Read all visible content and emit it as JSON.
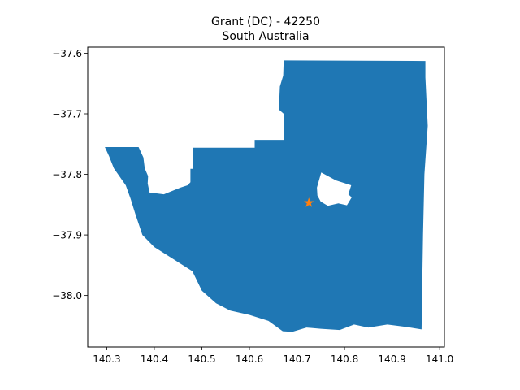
{
  "chart_data": {
    "type": "map",
    "title": "Grant (DC) - 42250",
    "subtitle": "South Australia",
    "xlim": [
      140.26,
      141.01
    ],
    "ylim": [
      -38.085,
      -37.59
    ],
    "xticks": [
      140.3,
      140.4,
      140.5,
      140.6,
      140.7,
      140.8,
      140.9,
      141.0
    ],
    "yticks": [
      -37.6,
      -37.7,
      -37.8,
      -37.9,
      -38.0
    ],
    "xtick_labels": [
      "140.3",
      "140.4",
      "140.5",
      "140.6",
      "140.7",
      "140.8",
      "140.9",
      "141.0"
    ],
    "ytick_labels": [
      "−37.6",
      "−37.7",
      "−37.8",
      "−37.9",
      "−38.0"
    ],
    "region_color": "#1f77b4",
    "marker": {
      "lon": 140.725,
      "lat": -37.847,
      "symbol": "star",
      "color": "#ff7f0e"
    },
    "region_outline": [
      [
        140.296,
        -37.755
      ],
      [
        140.367,
        -37.755
      ],
      [
        140.377,
        -37.772
      ],
      [
        140.38,
        -37.79
      ],
      [
        140.387,
        -37.803
      ],
      [
        140.386,
        -37.815
      ],
      [
        140.39,
        -37.83
      ],
      [
        140.42,
        -37.833
      ],
      [
        140.455,
        -37.822
      ],
      [
        140.47,
        -37.818
      ],
      [
        140.476,
        -37.813
      ],
      [
        140.476,
        -37.791
      ],
      [
        140.481,
        -37.791
      ],
      [
        140.481,
        -37.756
      ],
      [
        140.611,
        -37.756
      ],
      [
        140.611,
        -37.743
      ],
      [
        140.672,
        -37.743
      ],
      [
        140.672,
        -37.7
      ],
      [
        140.662,
        -37.693
      ],
      [
        140.664,
        -37.655
      ],
      [
        140.671,
        -37.637
      ],
      [
        140.672,
        -37.612
      ],
      [
        140.97,
        -37.613
      ],
      [
        140.97,
        -37.64
      ],
      [
        140.975,
        -37.72
      ],
      [
        140.968,
        -37.8
      ],
      [
        140.965,
        -37.9
      ],
      [
        140.963,
        -38.0
      ],
      [
        140.962,
        -38.056
      ],
      [
        140.93,
        -38.052
      ],
      [
        140.89,
        -38.048
      ],
      [
        140.85,
        -38.053
      ],
      [
        140.82,
        -38.048
      ],
      [
        140.79,
        -38.057
      ],
      [
        140.75,
        -38.055
      ],
      [
        140.72,
        -38.053
      ],
      [
        140.69,
        -38.06
      ],
      [
        140.67,
        -38.059
      ],
      [
        140.64,
        -38.042
      ],
      [
        140.6,
        -38.032
      ],
      [
        140.56,
        -38.025
      ],
      [
        140.53,
        -38.013
      ],
      [
        140.5,
        -37.992
      ],
      [
        140.48,
        -37.96
      ],
      [
        140.44,
        -37.94
      ],
      [
        140.4,
        -37.92
      ],
      [
        140.375,
        -37.9
      ],
      [
        140.36,
        -37.865
      ],
      [
        140.35,
        -37.84
      ],
      [
        140.34,
        -37.818
      ],
      [
        140.315,
        -37.79
      ],
      [
        140.305,
        -37.77
      ]
    ],
    "hole_outline": [
      [
        140.751,
        -37.797
      ],
      [
        140.782,
        -37.81
      ],
      [
        140.814,
        -37.818
      ],
      [
        140.808,
        -37.833
      ],
      [
        140.815,
        -37.838
      ],
      [
        140.805,
        -37.851
      ],
      [
        140.787,
        -37.848
      ],
      [
        140.765,
        -37.852
      ],
      [
        140.75,
        -37.845
      ],
      [
        140.743,
        -37.835
      ],
      [
        140.742,
        -37.822
      ]
    ]
  }
}
